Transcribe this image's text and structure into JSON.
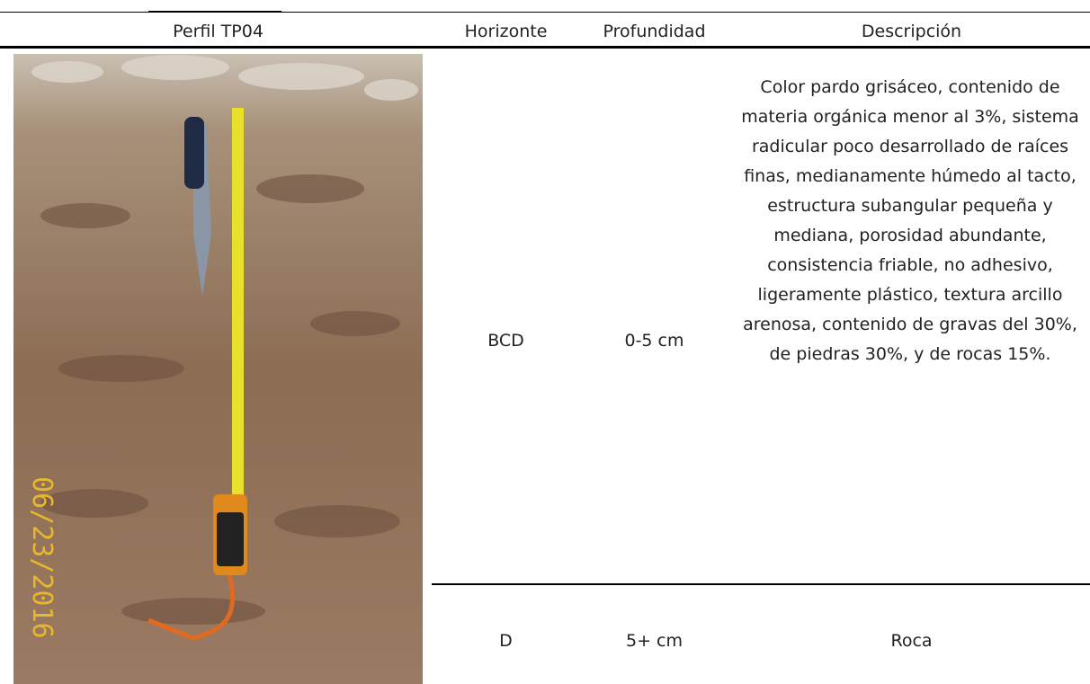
{
  "header": {
    "profile": "Perfil TP04",
    "horizon": "Horizonte",
    "depth": "Profundidad",
    "description": "Descripción"
  },
  "photo": {
    "date_stamp": "06/23/2016"
  },
  "rows": [
    {
      "horizon": "BCD",
      "depth": "0-5 cm",
      "description": "Color pardo grisáceo, contenido de materia orgánica menor al 3%, sistema radicular poco desarrollado de raíces finas, medianamente húmedo al tacto, estructura subangular pequeña y mediana, porosidad abundante, consistencia friable, no adhesivo, ligeramente plástico, textura arcillo arenosa, contenido de gravas del 30%, de piedras 30%, y de rocas 15%."
    },
    {
      "horizon": "D",
      "depth": "5+ cm",
      "description": "Roca"
    }
  ]
}
